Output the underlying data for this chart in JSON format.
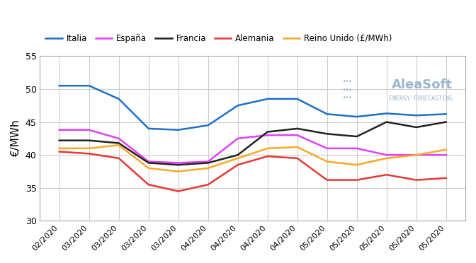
{
  "x_display": [
    "02/2020",
    "03/2020",
    "03/2020",
    "03/2020",
    "03/2020",
    "04/2020",
    "04/2020",
    "04/2020",
    "04/2020",
    "05/2020",
    "05/2020",
    "05/2020",
    "05/2020",
    "05/2020"
  ],
  "italia": [
    50.5,
    50.5,
    48.5,
    44.0,
    43.8,
    44.5,
    47.5,
    48.5,
    48.5,
    46.2,
    45.8,
    46.3,
    46.0,
    46.2
  ],
  "espana": [
    43.8,
    43.8,
    42.5,
    39.0,
    38.8,
    39.0,
    42.5,
    43.0,
    43.0,
    41.0,
    41.0,
    40.0,
    40.0,
    40.0
  ],
  "francia": [
    42.2,
    42.2,
    41.8,
    38.8,
    38.5,
    38.8,
    40.0,
    43.5,
    44.0,
    43.2,
    42.8,
    45.0,
    44.2,
    45.0
  ],
  "alemania": [
    40.5,
    40.2,
    39.5,
    35.5,
    34.5,
    35.5,
    38.5,
    39.8,
    39.5,
    36.2,
    36.2,
    37.0,
    36.2,
    36.5
  ],
  "reino_unido": [
    41.0,
    41.0,
    41.5,
    38.0,
    37.5,
    38.0,
    39.5,
    41.0,
    41.2,
    39.0,
    38.5,
    39.5,
    40.0,
    40.8
  ],
  "colors": {
    "italia": "#1f6ec8",
    "espana": "#e040fb",
    "francia": "#212121",
    "alemania": "#e53935",
    "reino_unido": "#f9a825"
  },
  "ylabel": "€/MWh",
  "ylim": [
    30,
    55
  ],
  "yticks": [
    30,
    35,
    40,
    45,
    50,
    55
  ],
  "legend_labels": [
    "Italia",
    "España",
    "Francia",
    "Alemania",
    "Reino Unido (£/MWh)"
  ],
  "background_color": "#ffffff",
  "grid_color": "#cccccc",
  "aleasoft_text": "AleaSoft",
  "aleasoft_sub": "ENERGY FORECASTING",
  "aleasoft_color": "#90aec8"
}
